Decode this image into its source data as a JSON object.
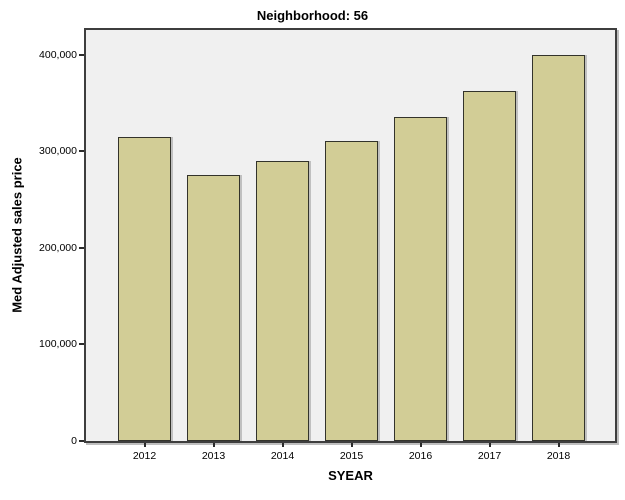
{
  "chart_data": {
    "type": "bar",
    "title": "Neighborhood: 56",
    "xlabel": "SYEAR",
    "ylabel": "Med Adjusted sales price",
    "categories": [
      "2012",
      "2013",
      "2014",
      "2015",
      "2016",
      "2017",
      "2018"
    ],
    "values": [
      315000,
      275000,
      290000,
      310000,
      335000,
      362000,
      400000
    ],
    "ylim": [
      0,
      425000
    ],
    "yticks": [
      {
        "value": 0,
        "label": "0"
      },
      {
        "value": 100000,
        "label": "100,000"
      },
      {
        "value": 200000,
        "label": "200,000"
      },
      {
        "value": 300000,
        "label": "300,000"
      },
      {
        "value": 400000,
        "label": "400,000"
      }
    ],
    "grid": false,
    "legend": false,
    "colors": {
      "bar_fill": "#D2CD96",
      "bar_border": "#33332B",
      "panel_background": "#F0F0F0",
      "frame": "#3E3E3E",
      "text": "#000000",
      "figure_background": "#FFFFFF"
    }
  }
}
